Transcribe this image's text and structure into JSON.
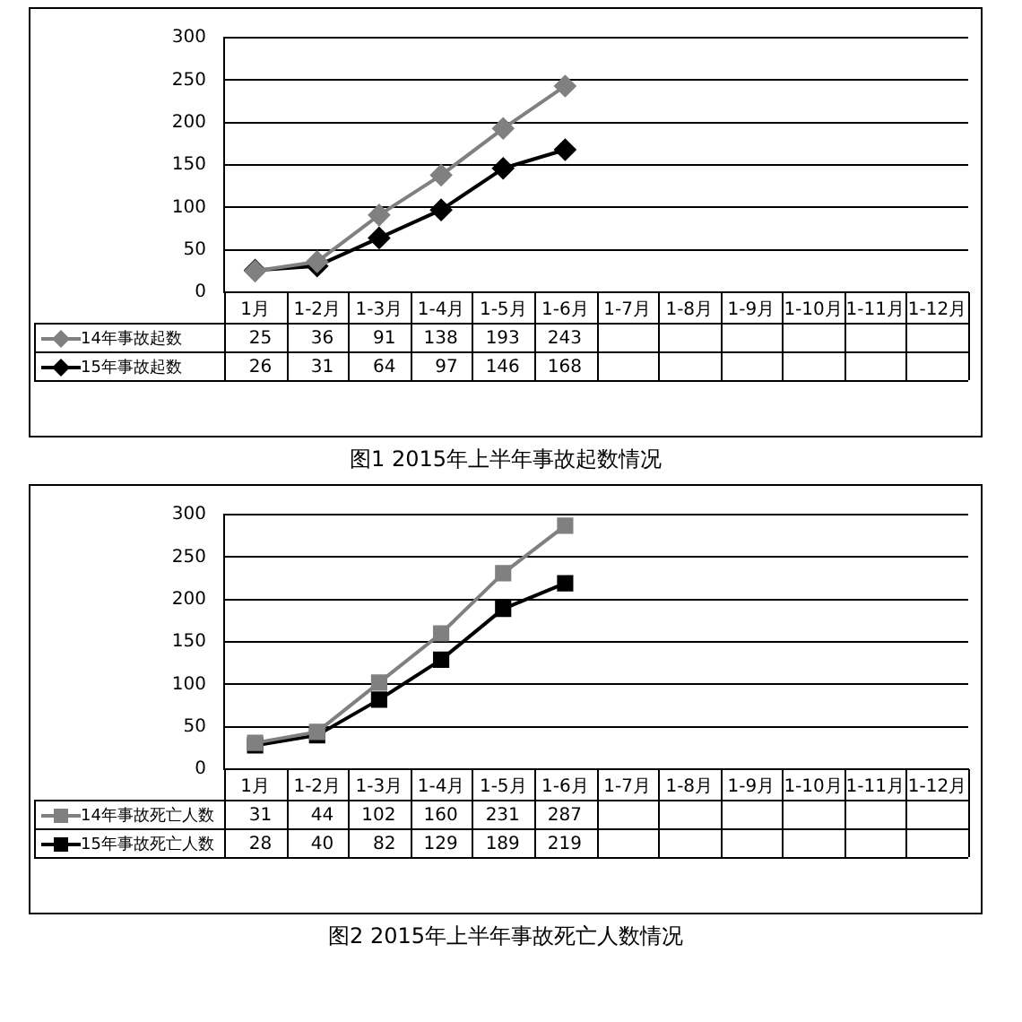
{
  "chart_data": [
    {
      "type": "line",
      "title": "图1  2015年上半年事故起数情况",
      "categories": [
        "1月",
        "1-2月",
        "1-3月",
        "1-4月",
        "1-5月",
        "1-6月",
        "1-7月",
        "1-8月",
        "1-9月",
        "1-10月",
        "1-11月",
        "1-12月"
      ],
      "series": [
        {
          "name": "14年事故起数",
          "color": "#808080",
          "values": [
            25,
            36,
            91,
            138,
            193,
            243,
            null,
            null,
            null,
            null,
            null,
            null
          ]
        },
        {
          "name": "15年事故起数",
          "color": "#000000",
          "values": [
            26,
            31,
            64,
            97,
            146,
            168,
            null,
            null,
            null,
            null,
            null,
            null
          ]
        }
      ],
      "ylim": [
        0,
        300
      ],
      "yticks": [
        0,
        50,
        100,
        150,
        200,
        250,
        300
      ],
      "grid": "y",
      "legend": "bottom left",
      "marker": "diamond",
      "data_labels": true
    },
    {
      "type": "line",
      "title": "图2  2015年上半年事故死亡人数情况",
      "categories": [
        "1月",
        "1-2月",
        "1-3月",
        "1-4月",
        "1-5月",
        "1-6月",
        "1-7月",
        "1-8月",
        "1-9月",
        "1-10月",
        "1-11月",
        "1-12月"
      ],
      "series": [
        {
          "name": "14年事故死亡人数",
          "color": "#808080",
          "values": [
            31,
            44,
            102,
            160,
            231,
            287,
            null,
            null,
            null,
            null,
            null,
            null
          ]
        },
        {
          "name": "15年事故死亡人数",
          "color": "#000000",
          "values": [
            28,
            40,
            82,
            129,
            189,
            219,
            null,
            null,
            null,
            null,
            null,
            null
          ]
        }
      ],
      "ylim": [
        0,
        300
      ],
      "yticks": [
        0,
        50,
        100,
        150,
        200,
        250,
        300
      ],
      "grid": "y",
      "legend": "bottom left",
      "marker": "square",
      "data_labels": true
    }
  ]
}
